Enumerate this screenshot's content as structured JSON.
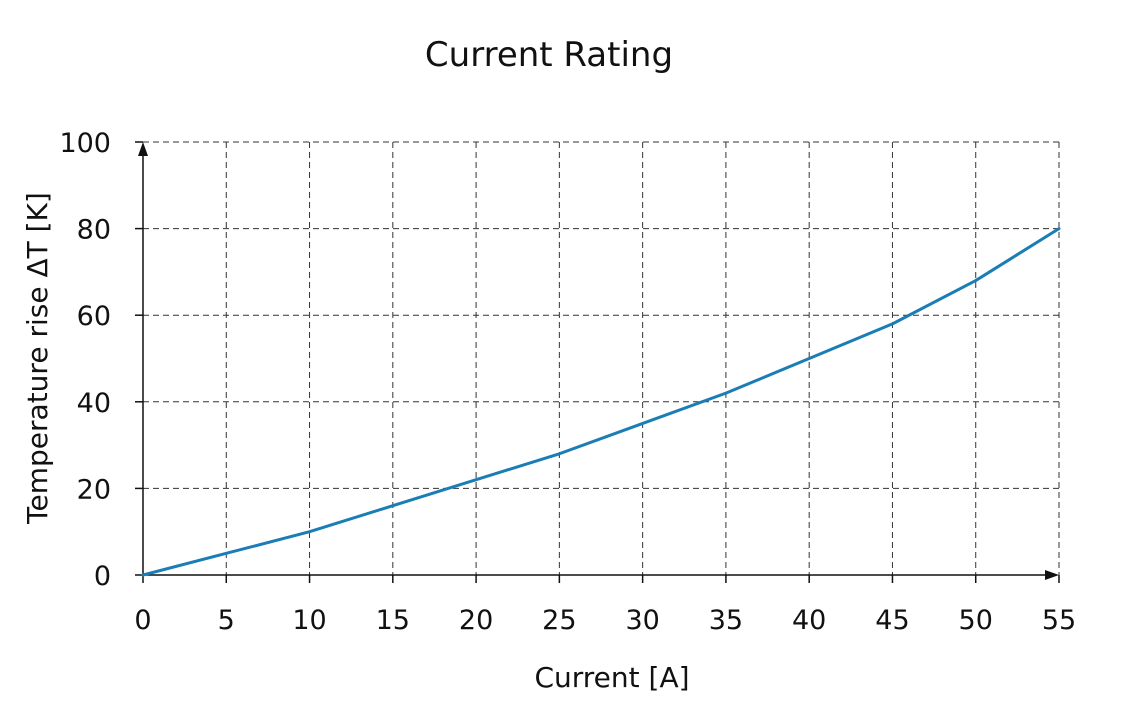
{
  "chart_data": {
    "type": "line",
    "title": "Current Rating",
    "xlabel": "Current [A]",
    "ylabel": "Temperature rise ΔT [K]",
    "xlim": [
      0,
      55
    ],
    "ylim": [
      0,
      100
    ],
    "xticks": [
      0,
      5,
      10,
      15,
      20,
      25,
      30,
      35,
      40,
      45,
      50,
      55
    ],
    "yticks": [
      0,
      20,
      40,
      60,
      80,
      100
    ],
    "grid": true,
    "colors": {
      "series": "#1a7db5",
      "axis": "#111111",
      "grid": "#333333"
    },
    "series": [
      {
        "x": [
          0,
          5,
          10,
          15,
          20,
          25,
          30,
          35,
          40,
          45,
          50,
          55
        ],
        "values": [
          0,
          5,
          10,
          16,
          22,
          28,
          35,
          42,
          50,
          58,
          68,
          80
        ]
      }
    ]
  }
}
